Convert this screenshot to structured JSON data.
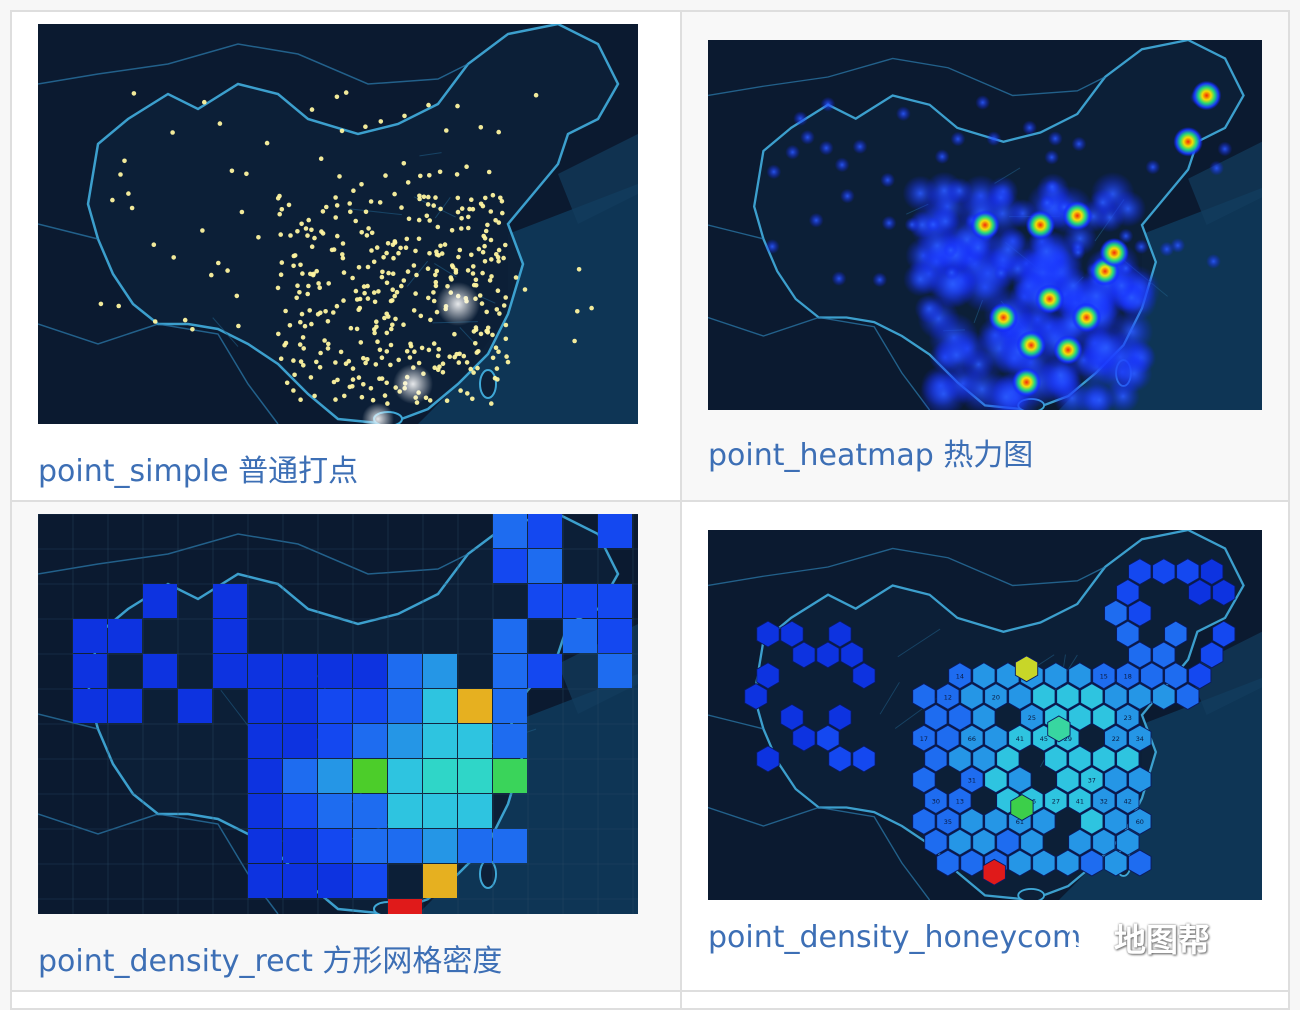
{
  "panels": [
    {
      "id": "point_simple",
      "caption": "point_simple 普通打点",
      "style": "points"
    },
    {
      "id": "point_heatmap",
      "caption": "point_heatmap 热力图",
      "style": "heatmap"
    },
    {
      "id": "point_density_rect",
      "caption": "point_density_rect 方形网格密度",
      "style": "rect"
    },
    {
      "id": "point_density_honeycomb",
      "caption": "point_density_honeycom",
      "style": "hex"
    }
  ],
  "hex_labels": [
    "14",
    "15",
    "18",
    "12",
    "20",
    "25",
    "23",
    "17",
    "66",
    "41",
    "45",
    "29",
    "22",
    "34",
    "31",
    "37",
    "30",
    "13",
    "36",
    "27",
    "41",
    "32",
    "42",
    "35",
    "61",
    "60"
  ],
  "watermark": {
    "text": "地图帮",
    "icon": "wechat-logo"
  },
  "colors": {
    "map_bg": "#0c1d33",
    "sea": "#0f3b5c",
    "border": "#3fa7d6",
    "point": "#fff6a0",
    "caption": "#3d6fb5"
  }
}
